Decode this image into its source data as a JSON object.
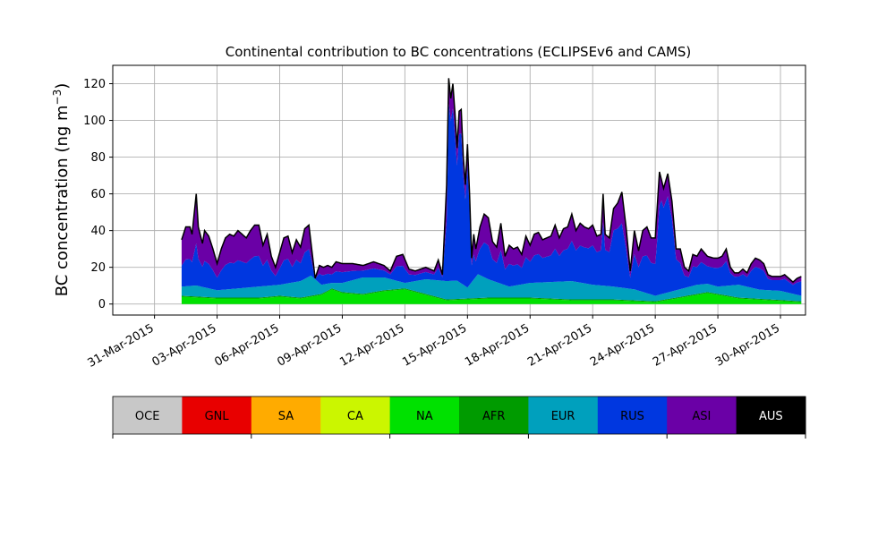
{
  "chart_data": {
    "type": "area",
    "stacked": true,
    "title": "Continental contribution to BC concentrations (ECLIPSEv6 and CAMS)",
    "ylabel_main": "BC concentration (ng m",
    "ylabel_sup": "−3",
    "ylabel_end": ")",
    "xlabel": "",
    "ylim": [
      -6,
      130
    ],
    "xlim": [
      -2.0,
      31.2
    ],
    "yticks": [
      0,
      20,
      40,
      60,
      80,
      100,
      120
    ],
    "xticks": [
      {
        "pos": 0,
        "label": "31-Mar-2015"
      },
      {
        "pos": 3,
        "label": "03-Apr-2015"
      },
      {
        "pos": 6,
        "label": "06-Apr-2015"
      },
      {
        "pos": 9,
        "label": "09-Apr-2015"
      },
      {
        "pos": 12,
        "label": "12-Apr-2015"
      },
      {
        "pos": 15,
        "label": "15-Apr-2015"
      },
      {
        "pos": 18,
        "label": "18-Apr-2015"
      },
      {
        "pos": 21,
        "label": "21-Apr-2015"
      },
      {
        "pos": 24,
        "label": "24-Apr-2015"
      },
      {
        "pos": 27,
        "label": "27-Apr-2015"
      },
      {
        "pos": 30,
        "label": "30-Apr-2015"
      }
    ],
    "x_units": "days since 31-Mar-2015",
    "grid": true,
    "total_anchors": [
      [
        1.3,
        35
      ],
      [
        1.5,
        42
      ],
      [
        1.7,
        42
      ],
      [
        1.8,
        38
      ],
      [
        2.0,
        60
      ],
      [
        2.1,
        42
      ],
      [
        2.3,
        33
      ],
      [
        2.4,
        40
      ],
      [
        2.6,
        37
      ],
      [
        2.8,
        30
      ],
      [
        3.0,
        22
      ],
      [
        3.2,
        30
      ],
      [
        3.4,
        36
      ],
      [
        3.6,
        38
      ],
      [
        3.8,
        37
      ],
      [
        4.0,
        40
      ],
      [
        4.2,
        38
      ],
      [
        4.4,
        36
      ],
      [
        4.6,
        40
      ],
      [
        4.8,
        43
      ],
      [
        5.0,
        43
      ],
      [
        5.2,
        32
      ],
      [
        5.4,
        38
      ],
      [
        5.6,
        26
      ],
      [
        5.8,
        20
      ],
      [
        6.0,
        28
      ],
      [
        6.2,
        36
      ],
      [
        6.4,
        37
      ],
      [
        6.6,
        28
      ],
      [
        6.8,
        35
      ],
      [
        7.0,
        31
      ],
      [
        7.2,
        41
      ],
      [
        7.4,
        43
      ],
      [
        7.7,
        14
      ],
      [
        7.9,
        21
      ],
      [
        8.1,
        20
      ],
      [
        8.3,
        21
      ],
      [
        8.5,
        20
      ],
      [
        8.7,
        23
      ],
      [
        9.0,
        22
      ],
      [
        9.5,
        22
      ],
      [
        10.0,
        21
      ],
      [
        10.5,
        23
      ],
      [
        11.0,
        21
      ],
      [
        11.3,
        18
      ],
      [
        11.6,
        26
      ],
      [
        11.9,
        27
      ],
      [
        12.2,
        19
      ],
      [
        12.5,
        18
      ],
      [
        13.0,
        20
      ],
      [
        13.4,
        18
      ],
      [
        13.6,
        24
      ],
      [
        13.8,
        16
      ],
      [
        14.0,
        65
      ],
      [
        14.1,
        123
      ],
      [
        14.2,
        112
      ],
      [
        14.3,
        120
      ],
      [
        14.4,
        104
      ],
      [
        14.5,
        85
      ],
      [
        14.6,
        105
      ],
      [
        14.7,
        106
      ],
      [
        14.8,
        80
      ],
      [
        14.9,
        65
      ],
      [
        15.0,
        87
      ],
      [
        15.1,
        60
      ],
      [
        15.2,
        25
      ],
      [
        15.3,
        38
      ],
      [
        15.4,
        30
      ],
      [
        15.6,
        42
      ],
      [
        15.8,
        49
      ],
      [
        16.0,
        47
      ],
      [
        16.2,
        34
      ],
      [
        16.4,
        31
      ],
      [
        16.6,
        44
      ],
      [
        16.8,
        26
      ],
      [
        17.0,
        32
      ],
      [
        17.2,
        30
      ],
      [
        17.4,
        31
      ],
      [
        17.6,
        27
      ],
      [
        17.8,
        37
      ],
      [
        18.0,
        32
      ],
      [
        18.2,
        38
      ],
      [
        18.4,
        39
      ],
      [
        18.6,
        35
      ],
      [
        18.8,
        36
      ],
      [
        19.0,
        37
      ],
      [
        19.2,
        43
      ],
      [
        19.4,
        36
      ],
      [
        19.6,
        41
      ],
      [
        19.8,
        42
      ],
      [
        20.0,
        49
      ],
      [
        20.2,
        40
      ],
      [
        20.4,
        44
      ],
      [
        20.6,
        42
      ],
      [
        20.8,
        41
      ],
      [
        21.0,
        43
      ],
      [
        21.2,
        37
      ],
      [
        21.4,
        38
      ],
      [
        21.5,
        60
      ],
      [
        21.6,
        38
      ],
      [
        21.8,
        36
      ],
      [
        22.0,
        52
      ],
      [
        22.2,
        55
      ],
      [
        22.4,
        61
      ],
      [
        22.6,
        42
      ],
      [
        22.8,
        18
      ],
      [
        23.0,
        40
      ],
      [
        23.2,
        29
      ],
      [
        23.4,
        40
      ],
      [
        23.6,
        42
      ],
      [
        23.8,
        36
      ],
      [
        24.0,
        36
      ],
      [
        24.2,
        72
      ],
      [
        24.4,
        63
      ],
      [
        24.6,
        71
      ],
      [
        24.8,
        56
      ],
      [
        25.0,
        30
      ],
      [
        25.2,
        30
      ],
      [
        25.4,
        20
      ],
      [
        25.6,
        18
      ],
      [
        25.8,
        27
      ],
      [
        26.0,
        26
      ],
      [
        26.2,
        30
      ],
      [
        26.5,
        26
      ],
      [
        26.8,
        25
      ],
      [
        27.0,
        25
      ],
      [
        27.2,
        26
      ],
      [
        27.4,
        30
      ],
      [
        27.6,
        20
      ],
      [
        27.8,
        17
      ],
      [
        28.0,
        17
      ],
      [
        28.2,
        19
      ],
      [
        28.4,
        17
      ],
      [
        28.6,
        22
      ],
      [
        28.8,
        25
      ],
      [
        29.0,
        24
      ],
      [
        29.2,
        22
      ],
      [
        29.4,
        16
      ],
      [
        29.6,
        15
      ],
      [
        29.8,
        15
      ],
      [
        30.0,
        15
      ],
      [
        30.2,
        16
      ],
      [
        30.4,
        14
      ],
      [
        30.6,
        12
      ],
      [
        30.8,
        14
      ],
      [
        31.0,
        15
      ]
    ],
    "series": [
      {
        "name": "NA",
        "color": "#00e100",
        "anchors": [
          [
            1.3,
            4
          ],
          [
            3,
            3
          ],
          [
            4,
            3
          ],
          [
            5,
            3
          ],
          [
            6,
            4
          ],
          [
            7,
            3
          ],
          [
            8,
            5
          ],
          [
            8.5,
            8
          ],
          [
            9,
            6
          ],
          [
            10,
            5
          ],
          [
            11,
            7
          ],
          [
            12,
            8
          ],
          [
            13,
            5
          ],
          [
            14,
            2
          ],
          [
            16,
            3
          ],
          [
            18,
            3
          ],
          [
            20,
            2
          ],
          [
            22,
            2
          ],
          [
            24,
            1
          ],
          [
            25.5,
            4
          ],
          [
            26.5,
            6
          ],
          [
            28,
            3
          ],
          [
            31,
            1
          ]
        ]
      },
      {
        "name": "AFR",
        "color": "#009b00",
        "anchors": [
          [
            1.3,
            0.5
          ],
          [
            31,
            0.5
          ]
        ]
      },
      {
        "name": "EUR",
        "color": "#00a0bd",
        "anchors": [
          [
            1.3,
            5
          ],
          [
            2,
            6
          ],
          [
            3,
            4
          ],
          [
            4,
            5
          ],
          [
            5,
            6
          ],
          [
            6,
            6
          ],
          [
            7,
            9
          ],
          [
            7.5,
            11
          ],
          [
            8,
            5
          ],
          [
            8.5,
            3
          ],
          [
            9,
            5
          ],
          [
            10,
            9
          ],
          [
            11,
            7
          ],
          [
            12,
            3
          ],
          [
            13,
            8
          ],
          [
            14,
            10
          ],
          [
            14.5,
            10
          ],
          [
            15,
            6
          ],
          [
            15.5,
            13
          ],
          [
            16,
            10
          ],
          [
            17,
            6
          ],
          [
            18,
            8
          ],
          [
            19,
            9
          ],
          [
            20,
            10
          ],
          [
            21,
            8
          ],
          [
            22,
            7
          ],
          [
            23,
            6
          ],
          [
            24,
            3
          ],
          [
            25,
            4
          ],
          [
            26,
            5
          ],
          [
            27,
            4
          ],
          [
            28,
            7
          ],
          [
            29,
            5
          ],
          [
            30,
            5
          ],
          [
            31,
            3
          ]
        ]
      },
      {
        "name": "RUS",
        "color": "#0037e0",
        "frac": 0.45,
        "override": [
          [
            14.0,
            0.62
          ],
          [
            14.1,
            0.88
          ],
          [
            15.1,
            0.85
          ],
          [
            15.3,
            0.55
          ],
          [
            17.5,
            0.55
          ],
          [
            20,
            0.6
          ],
          [
            22,
            0.72
          ],
          [
            23,
            0.6
          ],
          [
            24,
            0.55
          ],
          [
            24.3,
            0.82
          ],
          [
            24.9,
            0.8
          ],
          [
            25.3,
            0.6
          ],
          [
            30,
            0.75
          ]
        ]
      },
      {
        "name": "ASI",
        "color": "#6a00a6",
        "remainder": true
      }
    ],
    "legend": [
      {
        "label": "OCE",
        "color": "#c8c8c8"
      },
      {
        "label": "GNL",
        "color": "#e80000"
      },
      {
        "label": "SA",
        "color": "#ffab00"
      },
      {
        "label": "CA",
        "color": "#cbf600"
      },
      {
        "label": "NA",
        "color": "#00e100"
      },
      {
        "label": "AFR",
        "color": "#009b00"
      },
      {
        "label": "EUR",
        "color": "#00a0bd"
      },
      {
        "label": "RUS",
        "color": "#0037e0"
      },
      {
        "label": "ASI",
        "color": "#6a00a6"
      },
      {
        "label": "AUS",
        "color": "#000000"
      }
    ]
  }
}
